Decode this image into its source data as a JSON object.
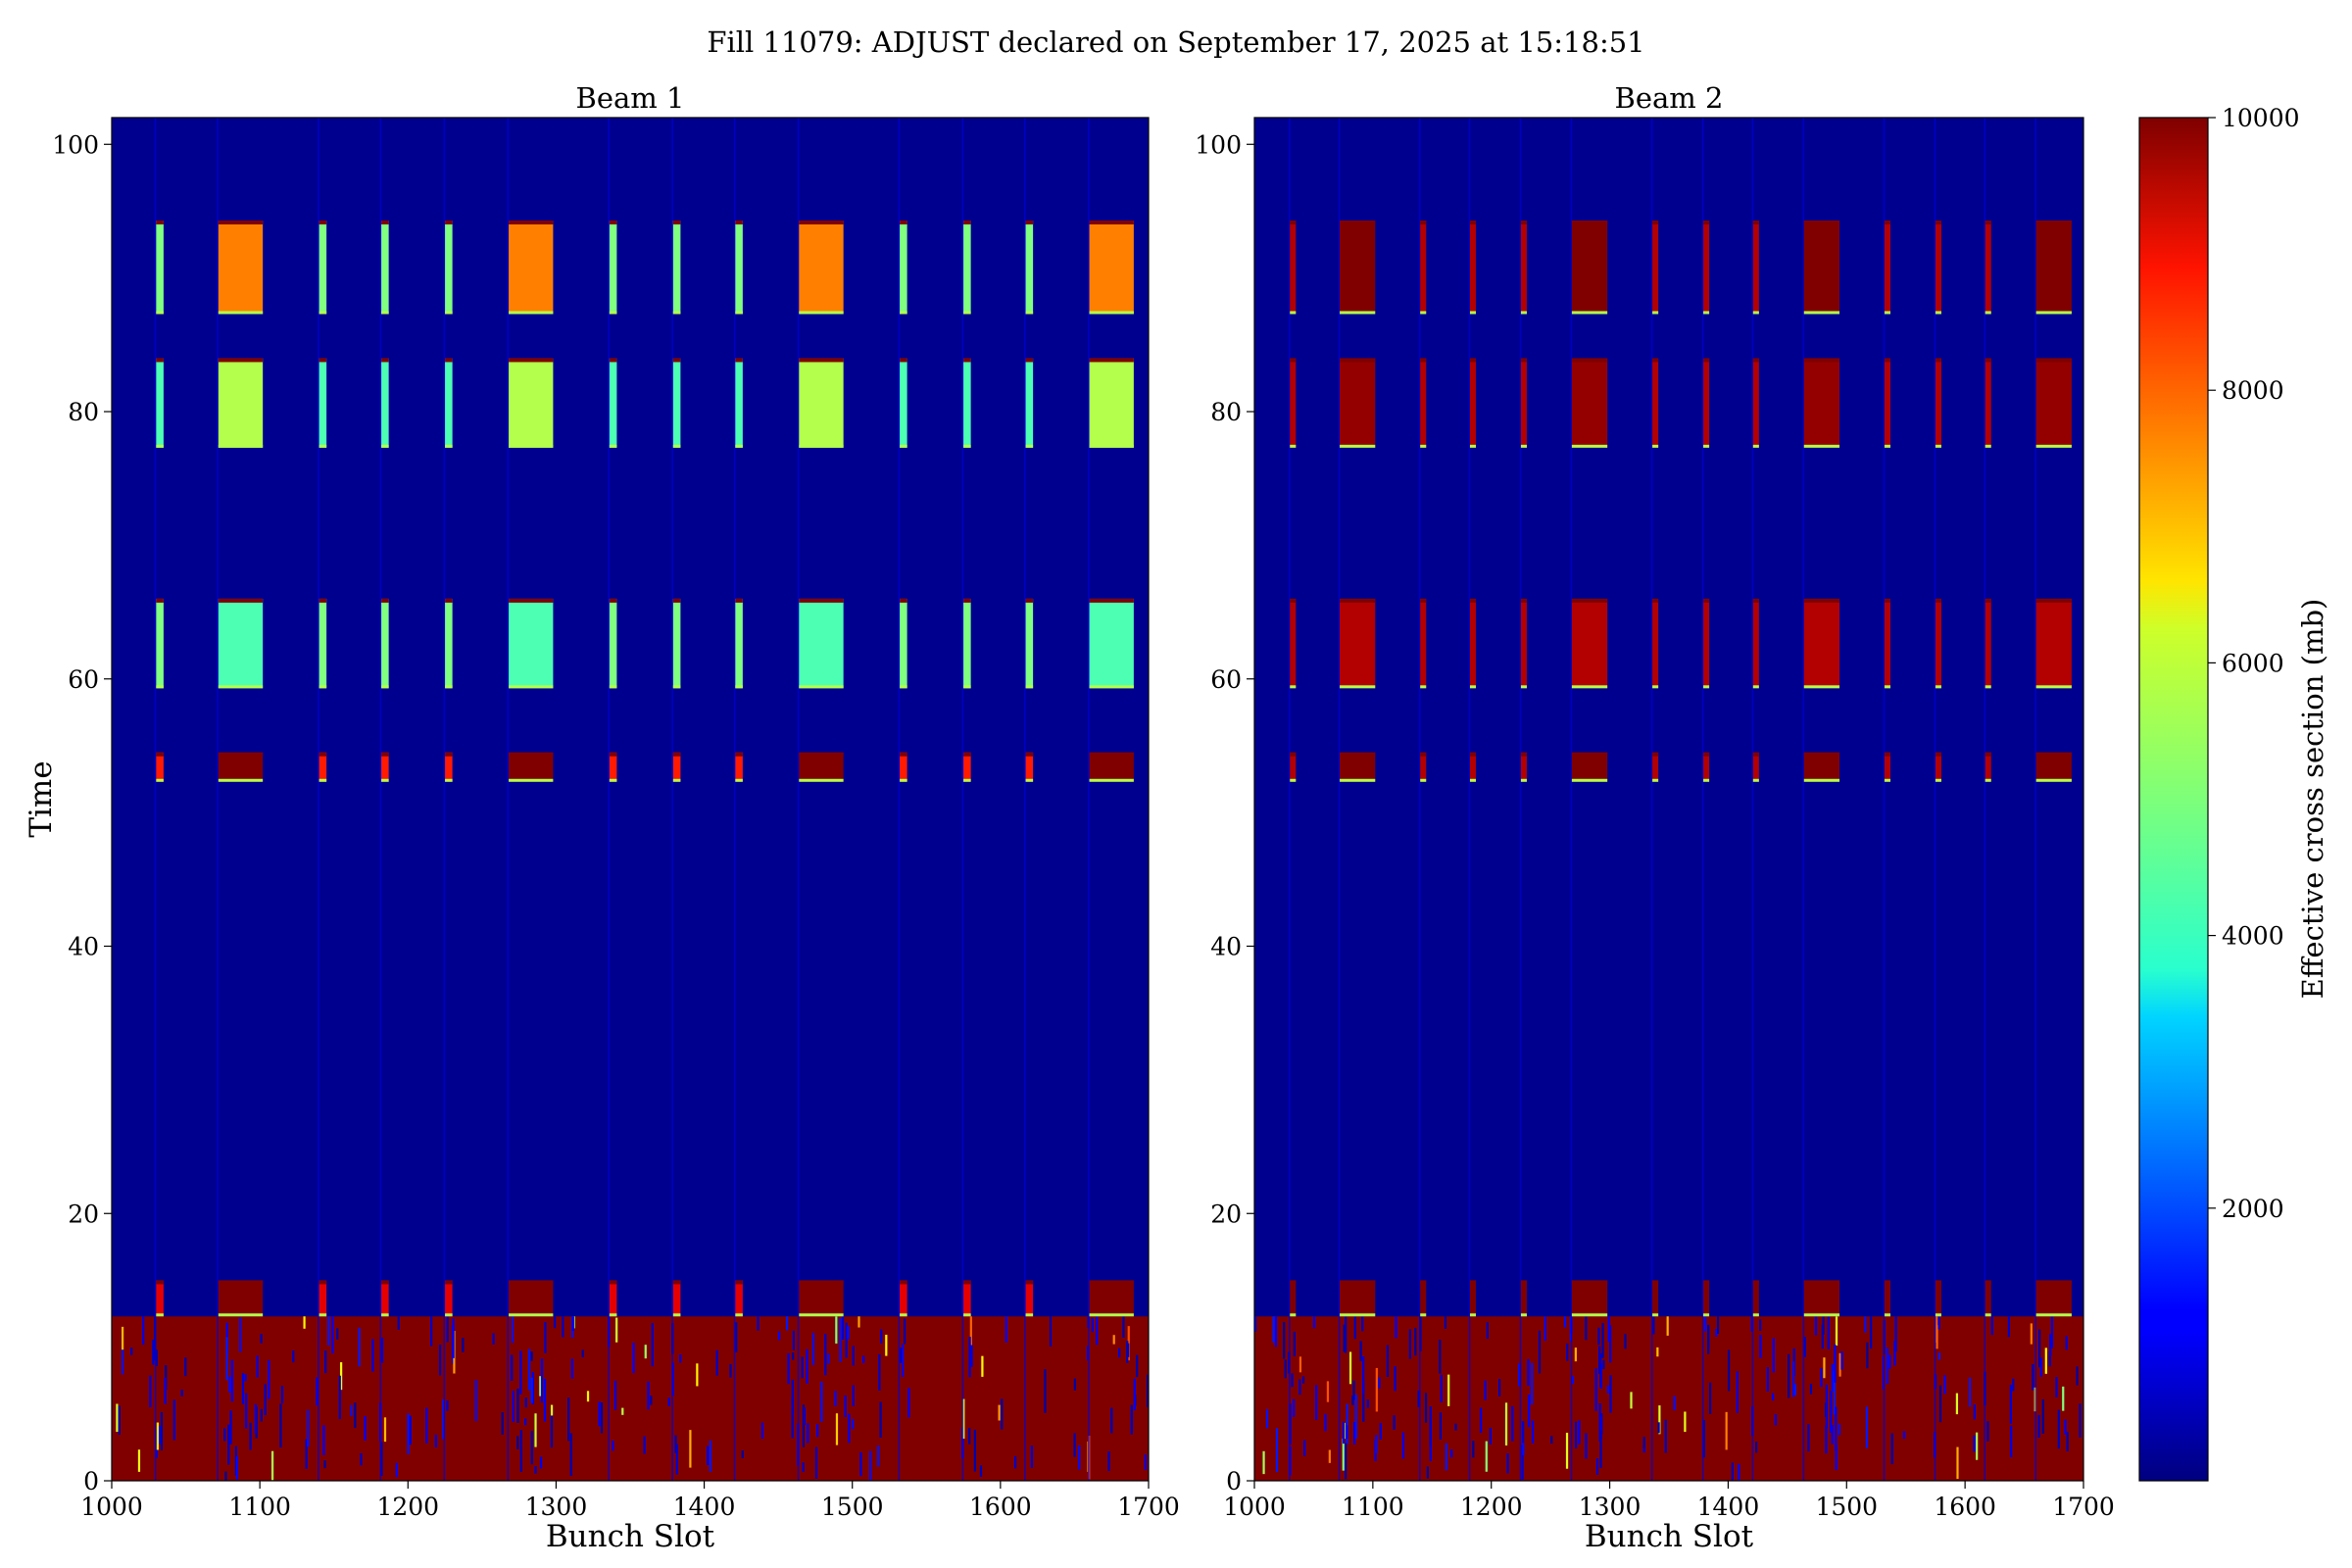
{
  "figure": {
    "suptitle": "Fill 11079: ADJUST declared on September 17, 2025 at 15:18:51"
  },
  "colors": {
    "background": "#00008b",
    "saturated": "#7f0000",
    "colormap": "jet"
  },
  "chart_data": [
    {
      "type": "heatmap",
      "title": "Beam 1",
      "xlabel": "Bunch Slot",
      "ylabel": "Time",
      "xlim": [
        1000,
        1700
      ],
      "ylim": [
        0,
        102
      ],
      "xticks": [
        1000,
        1100,
        1200,
        1300,
        1400,
        1500,
        1600,
        1700
      ],
      "yticks": [
        0,
        20,
        40,
        60,
        80,
        100
      ],
      "background_value": 150,
      "saturated_rows": {
        "y": [
          0,
          12.3
        ],
        "value": 10000
      },
      "trains": [
        {
          "x0": 1030,
          "x1": 1034
        },
        {
          "x0": 1072,
          "x1": 1102
        },
        {
          "x0": 1140,
          "x1": 1144
        },
        {
          "x0": 1182,
          "x1": 1186
        },
        {
          "x0": 1225,
          "x1": 1229
        },
        {
          "x0": 1268,
          "x1": 1298
        },
        {
          "x0": 1336,
          "x1": 1340
        },
        {
          "x0": 1379,
          "x1": 1383
        },
        {
          "x0": 1421,
          "x1": 1425
        },
        {
          "x0": 1464,
          "x1": 1494
        },
        {
          "x0": 1532,
          "x1": 1536
        },
        {
          "x0": 1575,
          "x1": 1579
        },
        {
          "x0": 1617,
          "x1": 1621
        },
        {
          "x0": 1660,
          "x1": 1690
        }
      ],
      "time_bands": [
        {
          "y0": 12.3,
          "y1": 15,
          "long_value": 10000,
          "short_value": 9000
        },
        {
          "y0": 52.3,
          "y1": 54.5,
          "long_value": 10000,
          "short_value": 8500
        },
        {
          "y0": 59.3,
          "y1": 66,
          "long_value": 4500,
          "short_value": 5000
        },
        {
          "y0": 77.3,
          "y1": 84,
          "long_value": 5500,
          "short_value": 4500
        },
        {
          "y0": 87.3,
          "y1": 94.3,
          "long_value": 7500,
          "short_value": 5000
        }
      ]
    },
    {
      "type": "heatmap",
      "title": "Beam 2",
      "xlabel": "Bunch Slot",
      "ylabel": "",
      "xlim": [
        1000,
        1700
      ],
      "ylim": [
        0,
        102
      ],
      "xticks": [
        1000,
        1100,
        1200,
        1300,
        1400,
        1500,
        1600,
        1700
      ],
      "yticks": [
        0,
        20,
        40,
        60,
        80,
        100
      ],
      "background_value": 150,
      "saturated_rows": {
        "y": [
          0,
          12.3
        ],
        "value": 10000
      },
      "trains": [
        {
          "x0": 1030,
          "x1": 1034
        },
        {
          "x0": 1072,
          "x1": 1102
        },
        {
          "x0": 1140,
          "x1": 1144
        },
        {
          "x0": 1182,
          "x1": 1186
        },
        {
          "x0": 1225,
          "x1": 1229
        },
        {
          "x0": 1268,
          "x1": 1298
        },
        {
          "x0": 1336,
          "x1": 1340
        },
        {
          "x0": 1379,
          "x1": 1383
        },
        {
          "x0": 1421,
          "x1": 1425
        },
        {
          "x0": 1464,
          "x1": 1494
        },
        {
          "x0": 1532,
          "x1": 1536
        },
        {
          "x0": 1575,
          "x1": 1579
        },
        {
          "x0": 1617,
          "x1": 1621
        },
        {
          "x0": 1660,
          "x1": 1690
        }
      ],
      "time_bands": [
        {
          "y0": 12.3,
          "y1": 15,
          "long_value": 10000,
          "short_value": 10000
        },
        {
          "y0": 52.3,
          "y1": 54.5,
          "long_value": 10000,
          "short_value": 9500
        },
        {
          "y0": 59.3,
          "y1": 66,
          "long_value": 9500,
          "short_value": 9500
        },
        {
          "y0": 77.3,
          "y1": 84,
          "long_value": 9800,
          "short_value": 9500
        },
        {
          "y0": 87.3,
          "y1": 94.3,
          "long_value": 10000,
          "short_value": 9500
        }
      ]
    }
  ],
  "colorbar": {
    "label": "Effective cross section (mb)",
    "range": [
      0,
      10000
    ],
    "ticks": [
      2000,
      4000,
      6000,
      8000,
      10000
    ]
  }
}
